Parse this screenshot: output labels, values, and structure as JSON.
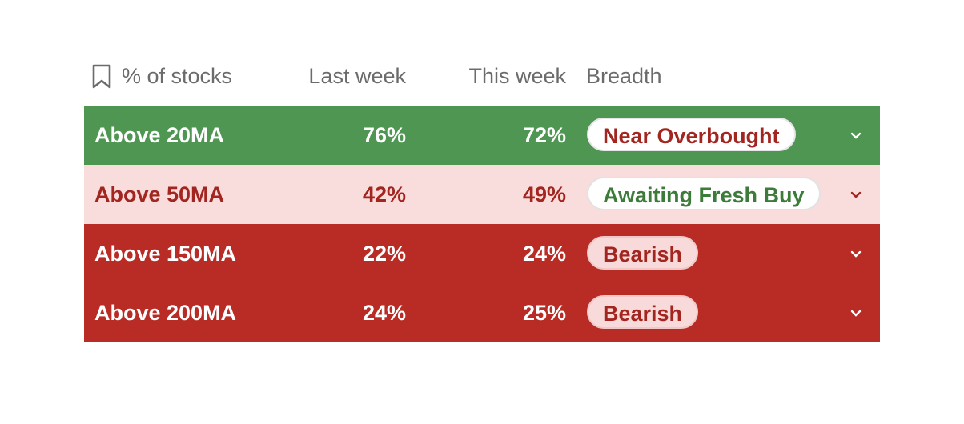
{
  "table": {
    "header": [
      "% of stocks",
      "Last week",
      "This week",
      "Breadth"
    ],
    "rows": [
      [
        "Above 20MA",
        "76%",
        "72%",
        "Near Overbought"
      ],
      [
        "Above 50MA",
        "42%",
        "49%",
        "Awaiting Fresh Buy"
      ],
      [
        "Above 150MA",
        "22%",
        "24%",
        "Bearish"
      ],
      [
        "Above 200MA",
        "24%",
        "25%",
        "Bearish"
      ]
    ]
  }
}
